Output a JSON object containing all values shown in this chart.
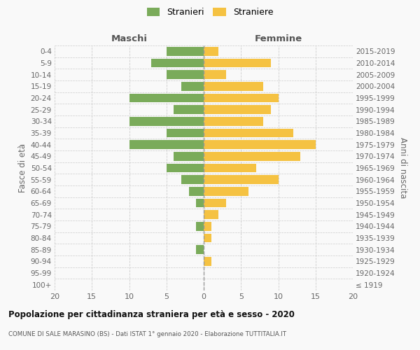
{
  "age_groups": [
    "100+",
    "95-99",
    "90-94",
    "85-89",
    "80-84",
    "75-79",
    "70-74",
    "65-69",
    "60-64",
    "55-59",
    "50-54",
    "45-49",
    "40-44",
    "35-39",
    "30-34",
    "25-29",
    "20-24",
    "15-19",
    "10-14",
    "5-9",
    "0-4"
  ],
  "birth_years": [
    "≤ 1919",
    "1920-1924",
    "1925-1929",
    "1930-1934",
    "1935-1939",
    "1940-1944",
    "1945-1949",
    "1950-1954",
    "1955-1959",
    "1960-1964",
    "1965-1969",
    "1970-1974",
    "1975-1979",
    "1980-1984",
    "1985-1989",
    "1990-1994",
    "1995-1999",
    "2000-2004",
    "2005-2009",
    "2010-2014",
    "2015-2019"
  ],
  "maschi": [
    0,
    0,
    0,
    1,
    0,
    1,
    0,
    1,
    2,
    3,
    5,
    4,
    10,
    5,
    10,
    4,
    10,
    3,
    5,
    7,
    5
  ],
  "femmine": [
    0,
    0,
    1,
    0,
    1,
    1,
    2,
    3,
    6,
    10,
    7,
    13,
    15,
    12,
    8,
    9,
    10,
    8,
    3,
    9,
    2
  ],
  "maschi_color": "#7aab5a",
  "femmine_color": "#f5c242",
  "background_color": "#f9f9f9",
  "grid_color": "#cccccc",
  "title": "Popolazione per cittadinanza straniera per età e sesso - 2020",
  "subtitle": "COMUNE DI SALE MARASINO (BS) - Dati ISTAT 1° gennaio 2020 - Elaborazione TUTTITALIA.IT",
  "xlabel_left": "Maschi",
  "xlabel_right": "Femmine",
  "ylabel_left": "Fasce di età",
  "ylabel_right": "Anni di nascita",
  "legend_maschi": "Stranieri",
  "legend_femmine": "Straniere",
  "xlim": 20,
  "bar_height": 0.75
}
